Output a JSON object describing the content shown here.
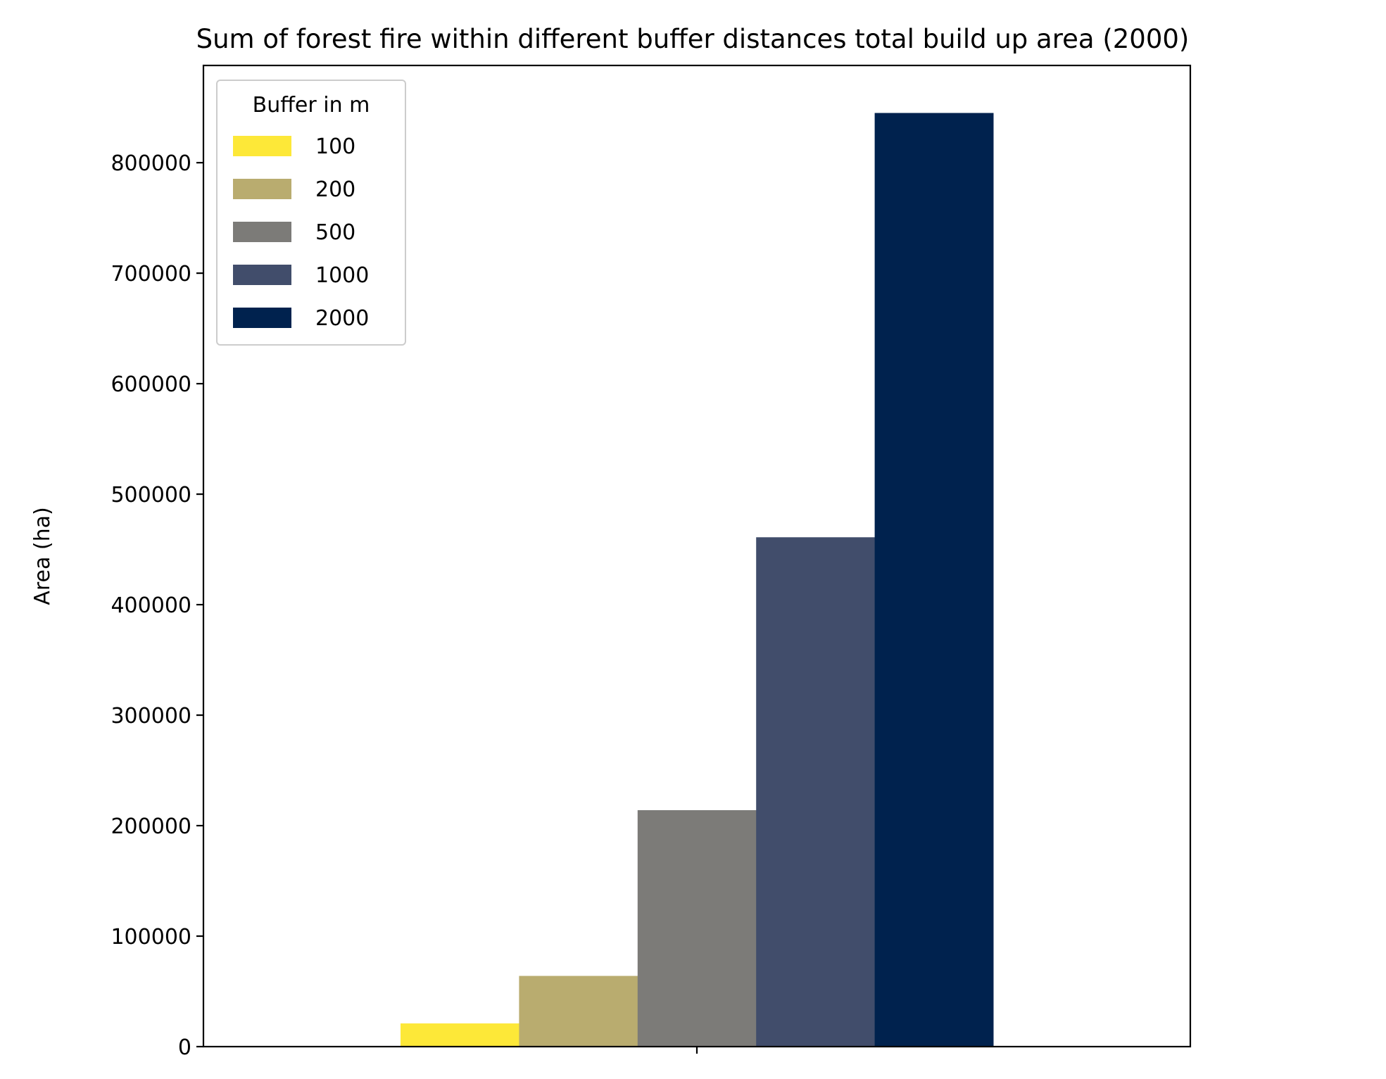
{
  "chart_data": {
    "type": "bar",
    "title": "Sum of forest fire within different buffer distances total build up area (2000)",
    "xlabel": "",
    "ylabel": "Area (ha)",
    "categories": [
      ""
    ],
    "ylim": [
      0,
      888000
    ],
    "yticks": [
      0,
      100000,
      200000,
      300000,
      400000,
      500000,
      600000,
      700000,
      800000
    ],
    "grid": false,
    "legend": {
      "title": "Buffer in m",
      "placement": "top-left"
    },
    "series": [
      {
        "name": "100",
        "values": [
          21000
        ],
        "color": "#fde838"
      },
      {
        "name": "200",
        "values": [
          64000
        ],
        "color": "#b9ac6f"
      },
      {
        "name": "500",
        "values": [
          214000
        ],
        "color": "#7c7b78"
      },
      {
        "name": "1000",
        "values": [
          461000
        ],
        "color": "#414d6b"
      },
      {
        "name": "2000",
        "values": [
          845000
        ],
        "color": "#00224e"
      }
    ]
  }
}
